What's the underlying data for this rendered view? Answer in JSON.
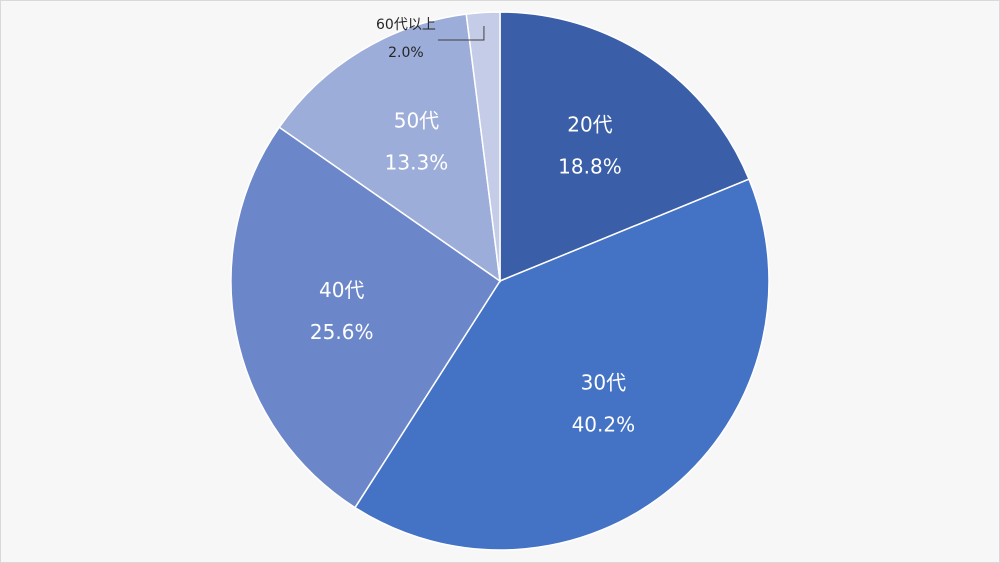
{
  "chart_data": {
    "type": "pie",
    "categories": [
      "20代",
      "30代",
      "40代",
      "50代",
      "60代以上"
    ],
    "values": [
      18.8,
      40.2,
      25.6,
      13.3,
      2.0
    ],
    "value_labels": [
      "18.8%",
      "40.2%",
      "25.6%",
      "13.3%",
      "2.0%"
    ],
    "colors": [
      "#3a5ea8",
      "#4472c4",
      "#6c87c9",
      "#9dadd9",
      "#c4cce8"
    ]
  }
}
